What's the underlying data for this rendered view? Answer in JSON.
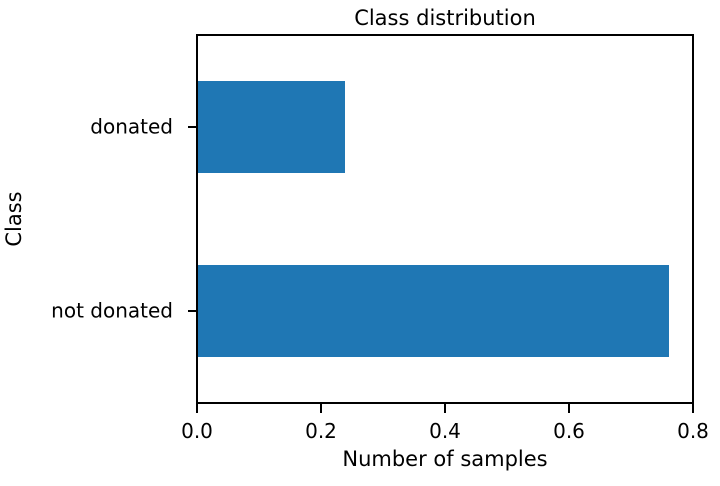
{
  "chart_data": {
    "type": "bar",
    "orientation": "horizontal",
    "title": "Class distribution",
    "xlabel": "Number of samples",
    "ylabel": "Class",
    "categories": [
      "donated",
      "not donated"
    ],
    "values": [
      0.238,
      0.762
    ],
    "xlim": [
      0.0,
      0.8
    ],
    "xtick_values": [
      0.0,
      0.2,
      0.4,
      0.6,
      0.8
    ],
    "xtick_labels": [
      "0.0",
      "0.2",
      "0.4",
      "0.6",
      "0.8"
    ],
    "bar_color": "#1f77b4",
    "axis_color": "#000000",
    "background_color": "#ffffff",
    "grid": false,
    "legend": false,
    "bar_fraction_of_band": 0.5
  }
}
